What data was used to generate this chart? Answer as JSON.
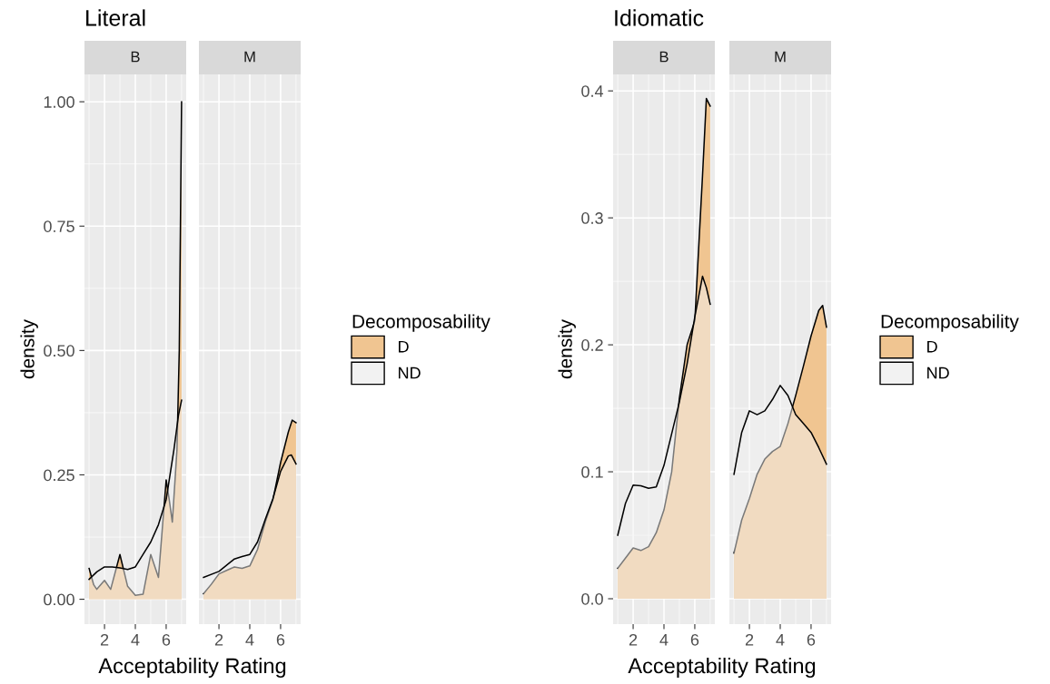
{
  "chart_data": [
    {
      "type": "area",
      "title": "Literal",
      "subtitle": "B",
      "xlabel": "Acceptability Rating",
      "ylabel": "density",
      "xlim": [
        0.7,
        7.3
      ],
      "xticks": [
        2,
        4,
        6
      ],
      "ylim": [
        -0.05,
        1.055
      ],
      "yticks": [
        {
          "value": 0,
          "label": "0.00"
        },
        {
          "value": 0.25,
          "label": "0.25"
        },
        {
          "value": 0.5,
          "label": "0.50"
        },
        {
          "value": 0.75,
          "label": "0.75"
        },
        {
          "value": 1,
          "label": "1.00"
        }
      ],
      "grid": true,
      "legend": "right",
      "legend_title": "Decomposability",
      "series": [
        {
          "name": "D",
          "color": "#f0c591",
          "x": [
            1,
            1.3,
            1.5,
            2,
            2.4,
            3,
            3.5,
            4,
            4.5,
            5,
            5.5,
            6,
            6.2,
            6.4,
            6.7,
            6.85,
            7
          ],
          "values": [
            0.062,
            0.029,
            0.02,
            0.038,
            0.02,
            0.09,
            0.026,
            0.008,
            0.01,
            0.09,
            0.044,
            0.24,
            0.2,
            0.155,
            0.3,
            0.5,
            1.0
          ]
        },
        {
          "name": "ND",
          "color": "#f2f2f2",
          "x": [
            1,
            1.5,
            2,
            2.5,
            3,
            3.5,
            4,
            4.5,
            5,
            5.5,
            6,
            6.5,
            6.8,
            7
          ],
          "values": [
            0.04,
            0.055,
            0.065,
            0.065,
            0.063,
            0.06,
            0.065,
            0.09,
            0.115,
            0.15,
            0.2,
            0.3,
            0.37,
            0.4
          ]
        }
      ]
    },
    {
      "type": "area",
      "subtitle": "M",
      "xlim": [
        0.7,
        7.3
      ],
      "xticks": [
        2,
        4,
        6
      ],
      "ylim": [
        -0.05,
        1.055
      ],
      "yticks": [
        {
          "value": 0,
          "label": null
        },
        {
          "value": 0.25,
          "label": null
        },
        {
          "value": 0.5,
          "label": null
        },
        {
          "value": 0.75,
          "label": null
        },
        {
          "value": 1,
          "label": null
        }
      ],
      "tick_labels": "x",
      "grid": true,
      "series": [
        {
          "color": "#f0c591",
          "x": [
            1,
            1.5,
            2,
            2.5,
            3,
            3.5,
            4,
            4.5,
            5,
            5.5,
            6,
            6.5,
            6.75,
            7
          ],
          "values": [
            0.011,
            0.03,
            0.051,
            0.058,
            0.065,
            0.062,
            0.067,
            0.1,
            0.155,
            0.2,
            0.275,
            0.336,
            0.36,
            0.355
          ]
        },
        {
          "color": "#f2f2f2",
          "x": [
            1,
            2,
            3,
            3.5,
            4,
            4.5,
            5,
            5.5,
            6,
            6.5,
            6.7,
            7
          ],
          "values": [
            0.044,
            0.056,
            0.081,
            0.086,
            0.09,
            0.115,
            0.16,
            0.202,
            0.257,
            0.288,
            0.29,
            0.272
          ]
        }
      ]
    },
    {
      "type": "area",
      "title": "Idiomatic",
      "subtitle": "B",
      "xlabel": "Acceptability Rating",
      "ylabel": "density",
      "xlim": [
        0.7,
        7.3
      ],
      "xticks": [
        2,
        4,
        6
      ],
      "ylim": [
        -0.02,
        0.413
      ],
      "yticks": [
        {
          "value": 0,
          "label": "0.0"
        },
        0.1,
        0.2,
        0.3,
        0.4
      ],
      "grid": true,
      "legend": "right",
      "legend_title": "Decomposability",
      "series": [
        {
          "name": "D",
          "color": "#f0c591",
          "x": [
            1,
            1.5,
            2,
            2.5,
            3,
            3.5,
            4,
            4.5,
            5,
            5.5,
            6,
            6.5,
            6.75,
            7
          ],
          "values": [
            0.024,
            0.032,
            0.04,
            0.038,
            0.041,
            0.052,
            0.07,
            0.1,
            0.158,
            0.2,
            0.219,
            0.333,
            0.394,
            0.388
          ]
        },
        {
          "name": "ND",
          "color": "#f2f2f2",
          "x": [
            1,
            1.5,
            2,
            2.5,
            3,
            3.5,
            4,
            4.5,
            5,
            5.5,
            6,
            6.5,
            6.75,
            7
          ],
          "values": [
            0.05,
            0.075,
            0.0895,
            0.089,
            0.087,
            0.088,
            0.105,
            0.13,
            0.155,
            0.185,
            0.222,
            0.254,
            0.245,
            0.232
          ]
        }
      ]
    },
    {
      "type": "area",
      "subtitle": "M",
      "xlim": [
        0.7,
        7.3
      ],
      "xticks": [
        2,
        4,
        6
      ],
      "ylim": [
        -0.02,
        0.413
      ],
      "yticks": [
        {
          "value": 0,
          "label": null
        },
        {
          "value": 0.1,
          "label": null
        },
        {
          "value": 0.2,
          "label": null
        },
        {
          "value": 0.3,
          "label": null
        },
        {
          "value": 0.4,
          "label": null
        }
      ],
      "tick_labels": "x",
      "grid": true,
      "series": [
        {
          "color": "#f0c591",
          "x": [
            1,
            1.5,
            2,
            2.5,
            3,
            3.5,
            4,
            4.5,
            5,
            5.5,
            6,
            6.5,
            6.75,
            7
          ],
          "values": [
            0.036,
            0.062,
            0.079,
            0.098,
            0.11,
            0.116,
            0.12,
            0.138,
            0.16,
            0.183,
            0.207,
            0.227,
            0.231,
            0.214
          ]
        },
        {
          "color": "#f2f2f2",
          "x": [
            1,
            1.5,
            2,
            2.5,
            3,
            3.5,
            4,
            4.5,
            5,
            5.5,
            6,
            6.5,
            7
          ],
          "values": [
            0.098,
            0.131,
            0.148,
            0.145,
            0.148,
            0.157,
            0.168,
            0.16,
            0.145,
            0.138,
            0.131,
            0.119,
            0.106
          ]
        }
      ]
    }
  ]
}
